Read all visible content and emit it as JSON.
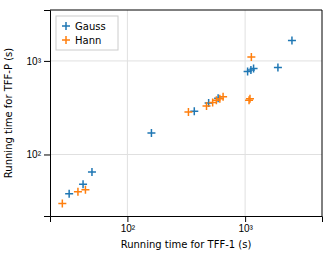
{
  "chart_data": {
    "type": "scatter",
    "x_label": "Running time for TFF-1 (s)",
    "y_label": "Running time for TFF-P (s)",
    "log": true,
    "grid": true,
    "legend": "upper left",
    "xlim": [
      22,
      4500
    ],
    "ylim": [
      22,
      3500
    ],
    "xticks": [
      {
        "value": 100,
        "label": "10²"
      },
      {
        "value": 1000,
        "label": "10³"
      }
    ],
    "yticks": [
      {
        "value": 100,
        "label": "10²"
      },
      {
        "value": 1000,
        "label": "10³"
      }
    ],
    "series": [
      {
        "name": "Gauss",
        "color": "#1f77b4",
        "marker": "+",
        "x": [
          32,
          42,
          50,
          160,
          370,
          490,
          590,
          1050,
          1120,
          1180,
          1900,
          2500
        ],
        "values": [
          38,
          48,
          65,
          170,
          290,
          355,
          400,
          770,
          800,
          830,
          850,
          1650
        ]
      },
      {
        "name": "Hann",
        "color": "#ff7f0e",
        "marker": "+",
        "x": [
          28,
          38,
          44,
          330,
          470,
          530,
          570,
          610,
          650,
          1080,
          1100,
          1130
        ],
        "values": [
          30,
          40,
          42,
          285,
          330,
          360,
          380,
          395,
          415,
          380,
          395,
          1100
        ]
      }
    ]
  }
}
